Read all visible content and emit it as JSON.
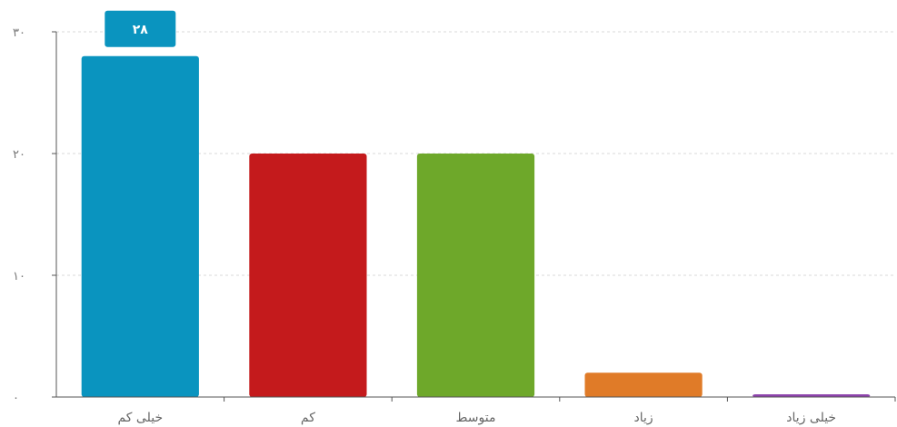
{
  "chart_data": {
    "type": "bar",
    "categories": [
      "خیلی کم",
      "کم",
      "متوسط",
      "زیاد",
      "خیلی زیاد"
    ],
    "values": [
      28,
      20,
      20,
      2,
      0.2
    ],
    "colors": [
      "#0a94bf",
      "#c41a1c",
      "#6ea82a",
      "#e07b28",
      "#8e44ad"
    ],
    "ylim": [
      0,
      30
    ],
    "yticks": [
      "۰",
      "۱۰",
      "۲۰",
      "۳۰"
    ],
    "ytick_values": [
      0,
      10,
      20,
      30
    ],
    "grid": true,
    "tooltip": {
      "category_index": 0,
      "label": "۲۸",
      "color": "#0a94bf"
    }
  }
}
